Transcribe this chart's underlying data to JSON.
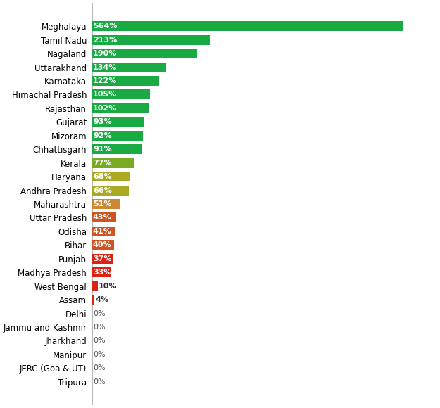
{
  "states": [
    "Meghalaya",
    "Tamil Nadu",
    "Nagaland",
    "Uttarakhand",
    "Karnataka",
    "Himachal Pradesh",
    "Rajasthan",
    "Gujarat",
    "Mizoram",
    "Chhattisgarh",
    "Kerala",
    "Haryana",
    "Andhra Pradesh",
    "Maharashtra",
    "Uttar Pradesh",
    "Odisha",
    "Bihar",
    "Punjab",
    "Madhya Pradesh",
    "West Bengal",
    "Assam",
    "Delhi",
    "Jammu and Kashmir",
    "Jharkhand",
    "Manipur",
    "JERC (Goa & UT)",
    "Tripura"
  ],
  "values": [
    564,
    213,
    190,
    134,
    122,
    105,
    102,
    93,
    92,
    91,
    77,
    68,
    66,
    51,
    43,
    41,
    40,
    37,
    33,
    10,
    4,
    0,
    0,
    0,
    0,
    0,
    0
  ],
  "color_thresholds": [
    [
      91,
      "#1aaa44"
    ],
    [
      77,
      "#7aaa22"
    ],
    [
      66,
      "#aaaa22"
    ],
    [
      51,
      "#cc8833"
    ],
    [
      40,
      "#cc5522"
    ],
    [
      1,
      "#dd2211"
    ],
    [
      0,
      "#cccccc"
    ]
  ],
  "bar_label_color": "white",
  "zero_label_color": "#555555",
  "background_color": "#ffffff",
  "label_fontsize": 8.0,
  "tick_fontsize": 8.5,
  "xlim": 625,
  "bar_height": 0.72
}
